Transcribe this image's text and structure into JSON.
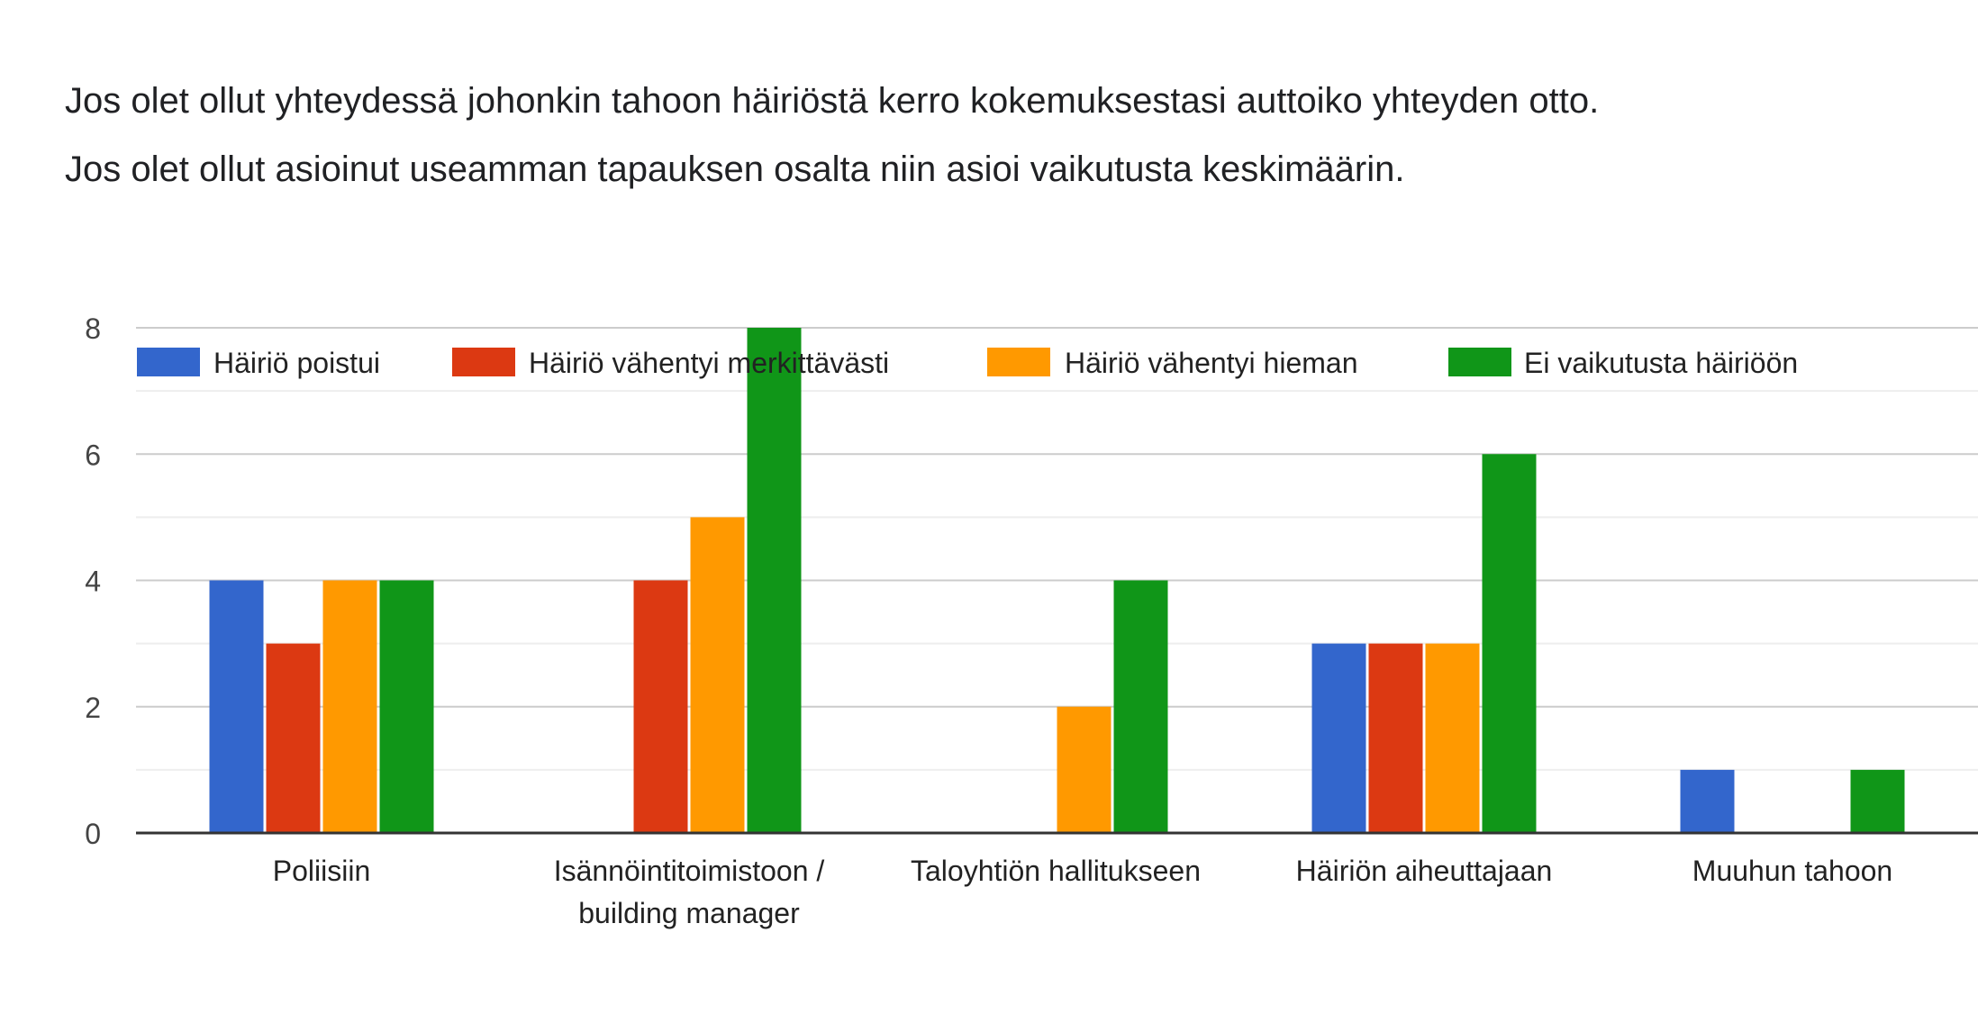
{
  "chart_data": {
    "type": "bar",
    "title": "Jos olet ollut yhteydessä johonkin tahoon häiriöstä kerro kokemuksestasi auttoiko yhteyden otto.\nJos olet ollut asioinut useamman tapauksen osalta niin asioi vaikutusta keskimäärin.",
    "xlabel": "",
    "ylabel": "",
    "categories": [
      [
        "Poliisiin"
      ],
      [
        "Isännöintitoimistoon /",
        "building manager"
      ],
      [
        "Taloyhtiön hallitukseen"
      ],
      [
        "Häiriön aiheuttajaan"
      ],
      [
        "Muuhun tahoon"
      ]
    ],
    "series": [
      {
        "name": "Häiriö poistui",
        "color": "#3366cc",
        "values": [
          4,
          0,
          0,
          3,
          1
        ]
      },
      {
        "name": "Häiriö vähentyi merkittävästi",
        "color": "#dc3912",
        "values": [
          3,
          4,
          0,
          3,
          0
        ]
      },
      {
        "name": "Häiriö vähentyi hieman",
        "color": "#ff9900",
        "values": [
          4,
          5,
          2,
          3,
          0
        ]
      },
      {
        "name": "Ei vaikutusta häiriöön",
        "color": "#109618",
        "values": [
          4,
          8,
          4,
          6,
          1
        ]
      }
    ],
    "ylim": [
      0,
      8
    ],
    "yticks": [
      0,
      2,
      4,
      6,
      8
    ],
    "grid": true,
    "legend": "top"
  }
}
